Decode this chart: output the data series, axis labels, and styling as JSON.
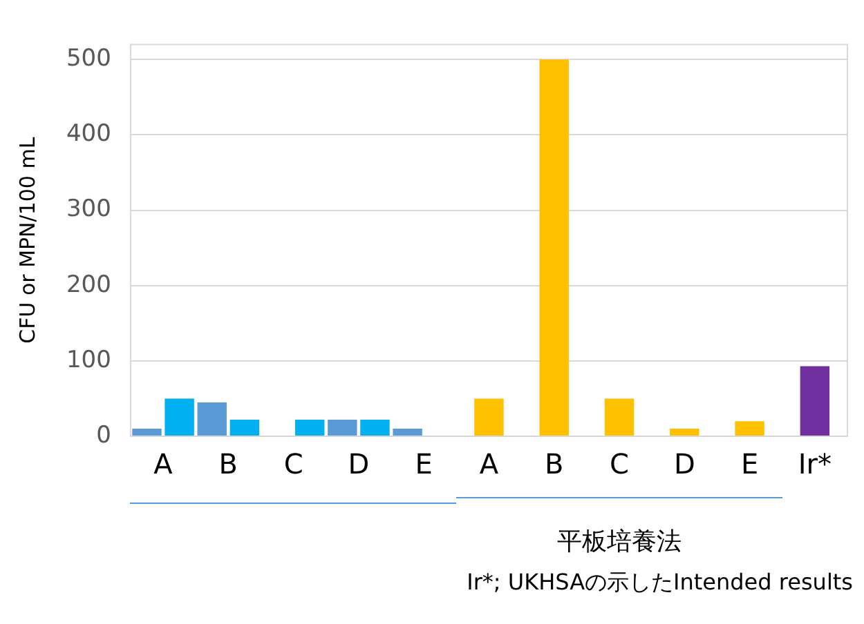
{
  "chart_data": {
    "type": "bar",
    "ylabel": "CFU or MPN/100 mL",
    "categories": [
      "A",
      "B",
      "C",
      "D",
      "E",
      "A",
      "B",
      "C",
      "D",
      "E",
      "Ir*"
    ],
    "series": [
      {
        "color": "#5b9bd5",
        "values": [
          10,
          45,
          null,
          22,
          10,
          null,
          null,
          null,
          null,
          null,
          null
        ]
      },
      {
        "color": "#00b0f0",
        "values": [
          50,
          22,
          22,
          22,
          null,
          null,
          null,
          null,
          null,
          null,
          null
        ]
      },
      {
        "color": "#ffc000",
        "values": [
          null,
          null,
          null,
          null,
          null,
          50,
          500,
          50,
          10,
          20,
          null
        ]
      },
      {
        "color": "#7030a0",
        "values": [
          null,
          null,
          null,
          null,
          null,
          null,
          null,
          null,
          null,
          null,
          93
        ]
      }
    ],
    "ylim": [
      0,
      520
    ],
    "yticks": [
      0,
      100,
      200,
      300,
      400,
      500
    ],
    "grid": "y",
    "legend": false,
    "annotations": [
      "平板培養法",
      "Ir*; UKHSAの示したIntended results"
    ]
  }
}
